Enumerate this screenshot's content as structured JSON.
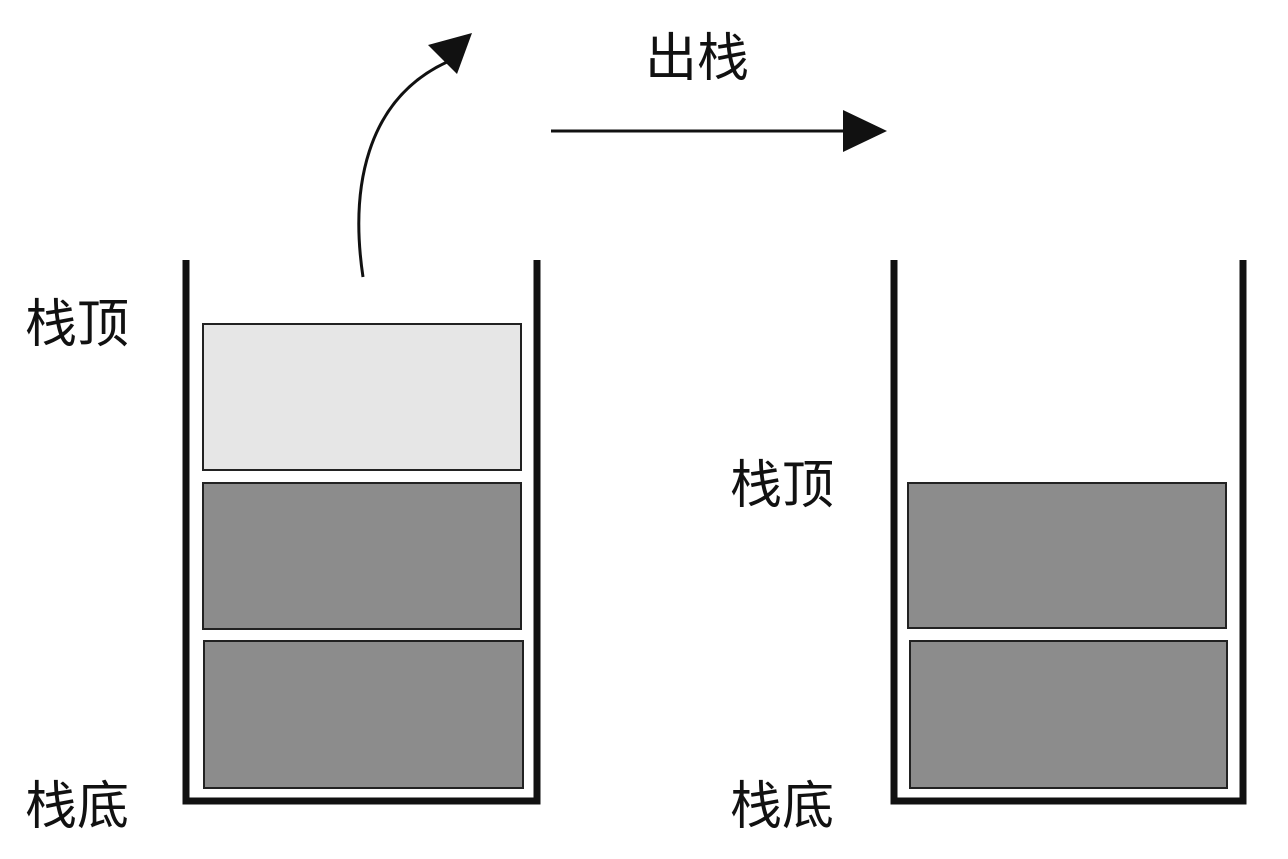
{
  "diagram": {
    "operation_label": "出栈",
    "before_stack": {
      "top_label": "栈顶",
      "bottom_label": "栈底"
    },
    "after_stack": {
      "top_label": "栈顶",
      "bottom_label": "栈底"
    }
  },
  "colors": {
    "outline": "#111111",
    "popped_element_fill": "#e6e6e6",
    "element_fill": "#8c8c8c",
    "background": "#ffffff"
  }
}
